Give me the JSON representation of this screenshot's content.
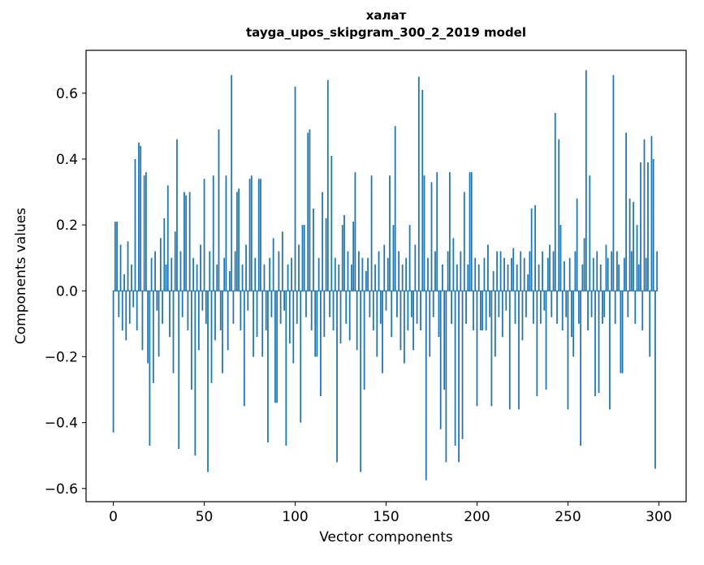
{
  "title": {
    "line1": "халат",
    "line2": "tayga_upos_skipgram_300_2_2019 model"
  },
  "chart_data": {
    "type": "bar",
    "title": "халат — tayga_upos_skipgram_300_2_2019 model",
    "xlabel": "Vector components",
    "ylabel": "Components values",
    "xlim": [
      -15,
      315
    ],
    "ylim": [
      -0.64,
      0.73
    ],
    "xticks": [
      0,
      50,
      100,
      150,
      200,
      250,
      300
    ],
    "yticks": [
      -0.6,
      -0.4,
      -0.2,
      0.0,
      0.2,
      0.4,
      0.6
    ],
    "bar_color": "#1f77b4",
    "grid": false,
    "legend": null,
    "n_components": 300,
    "values": [
      -0.43,
      0.21,
      0.21,
      -0.08,
      0.14,
      -0.12,
      0.05,
      -0.15,
      0.15,
      -0.1,
      0.08,
      -0.05,
      0.4,
      -0.12,
      0.45,
      0.44,
      -0.18,
      0.35,
      0.36,
      -0.22,
      -0.47,
      0.1,
      -0.28,
      0.12,
      -0.06,
      -0.2,
      0.16,
      -0.1,
      0.22,
      0.08,
      0.32,
      -0.14,
      0.1,
      -0.25,
      0.18,
      0.46,
      -0.48,
      0.12,
      -0.08,
      0.3,
      0.29,
      -0.12,
      0.3,
      -0.3,
      0.1,
      -0.5,
      0.08,
      -0.18,
      0.14,
      -0.06,
      0.34,
      -0.1,
      -0.55,
      0.12,
      -0.28,
      0.35,
      -0.15,
      0.08,
      0.49,
      -0.12,
      -0.25,
      0.1,
      0.35,
      -0.18,
      0.06,
      0.655,
      -0.1,
      0.12,
      0.3,
      0.31,
      -0.12,
      0.08,
      -0.35,
      0.14,
      -0.06,
      0.34,
      0.35,
      -0.2,
      0.1,
      -0.14,
      0.34,
      0.34,
      -0.2,
      0.08,
      -0.12,
      -0.46,
      0.1,
      -0.08,
      0.16,
      -0.34,
      -0.34,
      0.12,
      -0.1,
      0.18,
      -0.06,
      -0.47,
      0.08,
      -0.16,
      0.1,
      -0.22,
      0.62,
      -0.1,
      0.14,
      -0.4,
      0.2,
      0.2,
      -0.08,
      0.48,
      0.49,
      -0.12,
      0.25,
      -0.2,
      -0.2,
      0.1,
      -0.32,
      0.3,
      -0.14,
      0.22,
      0.64,
      -0.08,
      0.41,
      -0.12,
      0.1,
      -0.52,
      0.08,
      -0.16,
      0.2,
      0.23,
      -0.1,
      0.12,
      -0.15,
      0.08,
      0.21,
      0.36,
      -0.18,
      0.12,
      -0.55,
      0.1,
      -0.3,
      0.06,
      0.1,
      -0.08,
      0.35,
      -0.12,
      0.08,
      -0.2,
      0.12,
      -0.1,
      -0.25,
      0.14,
      -0.06,
      0.1,
      0.35,
      -0.14,
      0.2,
      0.5,
      -0.08,
      0.12,
      -0.18,
      0.08,
      -0.22,
      0.1,
      -0.12,
      0.2,
      -0.08,
      -0.18,
      0.14,
      -0.1,
      0.65,
      -0.12,
      0.61,
      0.35,
      -0.575,
      0.1,
      -0.2,
      0.33,
      -0.08,
      0.12,
      0.36,
      -0.14,
      -0.42,
      0.08,
      -0.3,
      -0.52,
      0.12,
      0.36,
      -0.1,
      0.16,
      -0.47,
      0.08,
      -0.52,
      0.12,
      -0.45,
      0.3,
      -0.1,
      0.08,
      0.36,
      0.36,
      -0.12,
      0.1,
      -0.35,
      0.08,
      -0.12,
      -0.12,
      0.1,
      -0.12,
      0.14,
      -0.08,
      -0.35,
      0.06,
      -0.2,
      0.12,
      -0.08,
      0.12,
      -0.14,
      0.1,
      -0.06,
      0.08,
      -0.36,
      0.1,
      0.13,
      -0.1,
      0.08,
      -0.36,
      0.12,
      -0.15,
      0.1,
      -0.08,
      0.05,
      0.12,
      0.25,
      -0.1,
      0.26,
      -0.32,
      0.08,
      -0.1,
      0.12,
      -0.06,
      -0.3,
      0.1,
      0.14,
      -0.08,
      0.12,
      0.54,
      -0.1,
      0.46,
      0.2,
      -0.12,
      0.09,
      -0.08,
      -0.36,
      0.1,
      -0.14,
      -0.2,
      0.12,
      0.28,
      -0.1,
      -0.47,
      0.08,
      0.16,
      0.67,
      -0.12,
      0.35,
      -0.08,
      0.1,
      -0.32,
      0.12,
      -0.31,
      0.08,
      -0.1,
      -0.08,
      0.14,
      0.1,
      -0.36,
      0.12,
      0.655,
      -0.1,
      0.12,
      0.08,
      -0.25,
      -0.25,
      0.1,
      0.48,
      -0.08,
      0.28,
      0.12,
      0.27,
      -0.1,
      0.2,
      0.08,
      0.39,
      -0.12,
      0.46,
      0.1,
      0.39,
      -0.2,
      0.47,
      0.4,
      -0.54,
      0.12
    ]
  }
}
